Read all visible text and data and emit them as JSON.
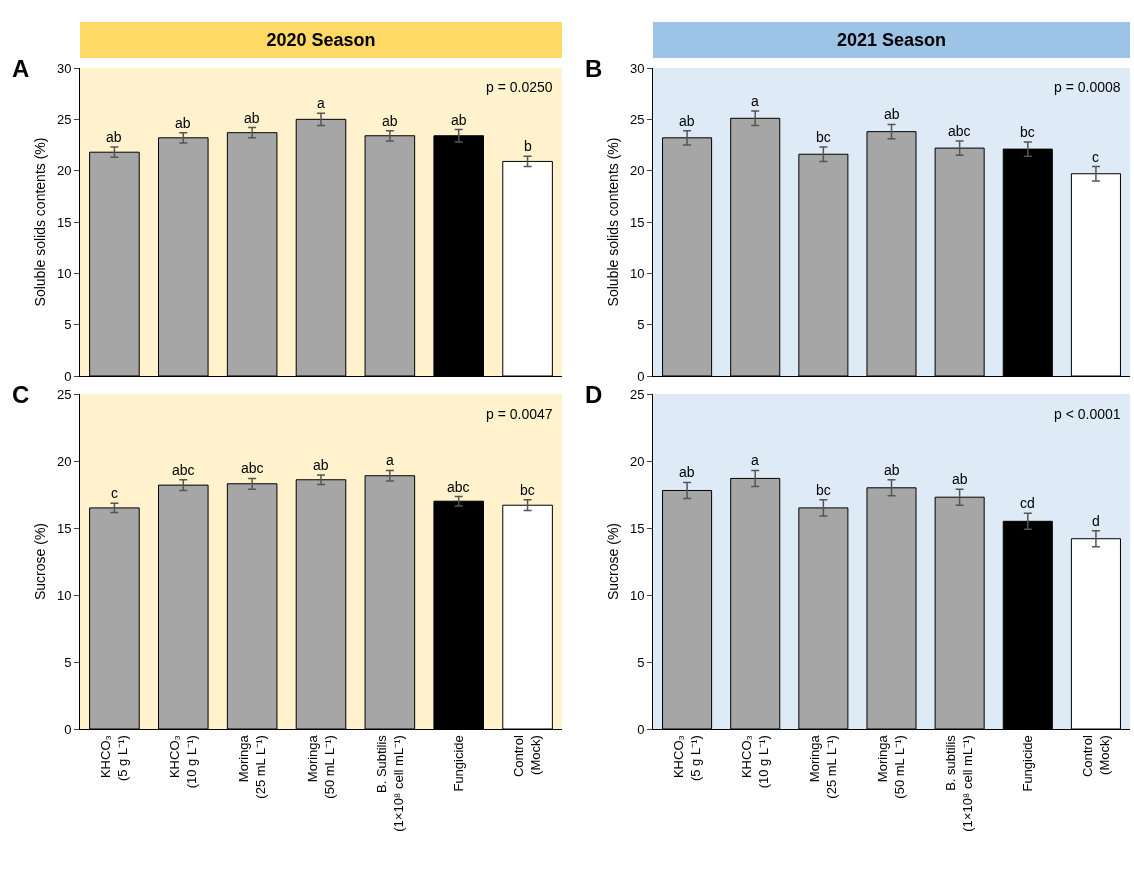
{
  "chart_data": [
    {
      "type": "bar",
      "title": "2020 Season",
      "ylabel": "Soluble solids contents (%)",
      "categories": [
        "KHCO₃\n(5 g L⁻¹)",
        "KHCO₃\n(10 g L⁻¹)",
        "Moringa\n(25 mL L⁻¹)",
        "Moringa\n(50 mL L⁻¹)",
        "B. Subtilis\n(1×10⁸ cell mL⁻¹)",
        "Fungicide",
        "Control\n(Mock)"
      ],
      "values": [
        21.8,
        23.2,
        23.7,
        25.0,
        23.4,
        23.4,
        20.9
      ],
      "errors": [
        0.5,
        0.5,
        0.5,
        0.6,
        0.5,
        0.6,
        0.5
      ],
      "colors": [
        "#a6a6a6",
        "#a6a6a6",
        "#a6a6a6",
        "#a6a6a6",
        "#a6a6a6",
        "#000000",
        "#ffffff"
      ],
      "ylim": [
        0,
        30
      ],
      "yticks": [
        0,
        5,
        10,
        15,
        20,
        25,
        30
      ],
      "tick_labels": "y",
      "annotations": [
        "A",
        "p = 0.0250",
        {
          "text": "ab",
          "x": "KHCO₃\n(5 g L⁻¹)",
          "y": 22.3
        },
        {
          "text": "ab",
          "x": "KHCO₃\n(10 g L⁻¹)",
          "y": 23.7
        },
        {
          "text": "ab",
          "x": "Moringa\n(25 mL L⁻¹)",
          "y": 24.2
        },
        {
          "text": "a",
          "x": "Moringa\n(50 mL L⁻¹)",
          "y": 25.6
        },
        {
          "text": "ab",
          "x": "B. Subtilis\n(1×10⁸ cell mL⁻¹)",
          "y": 23.9
        },
        {
          "text": "ab",
          "x": "Fungicide",
          "y": 24.0
        },
        {
          "text": "b",
          "x": "Control\n(Mock)",
          "y": 21.4
        }
      ]
    },
    {
      "type": "bar",
      "title": "2021 Season",
      "ylabel": "Soluble solids contents (%)",
      "categories": [
        "KHCO₃\n(5 g L⁻¹)",
        "KHCO₃\n(10 g L⁻¹)",
        "Moringa\n(25 mL L⁻¹)",
        "Moringa\n(50 mL L⁻¹)",
        "B. subtilis\n(1×10⁸ cell mL⁻¹)",
        "Fungicide",
        "Control\n(Mock)"
      ],
      "values": [
        23.2,
        25.1,
        21.6,
        23.8,
        22.2,
        22.1,
        19.7
      ],
      "errors": [
        0.7,
        0.7,
        0.7,
        0.7,
        0.7,
        0.7,
        0.7
      ],
      "colors": [
        "#a6a6a6",
        "#a6a6a6",
        "#a6a6a6",
        "#a6a6a6",
        "#a6a6a6",
        "#000000",
        "#ffffff"
      ],
      "ylim": [
        0,
        30
      ],
      "yticks": [
        0,
        5,
        10,
        15,
        20,
        25,
        30
      ],
      "tick_labels": "y",
      "annotations": [
        "B",
        "p = 0.0008",
        {
          "text": "ab",
          "x": "KHCO₃\n(5 g L⁻¹)",
          "y": 23.9
        },
        {
          "text": "a",
          "x": "KHCO₃\n(10 g L⁻¹)",
          "y": 25.8
        },
        {
          "text": "bc",
          "x": "Moringa\n(25 mL L⁻¹)",
          "y": 22.3
        },
        {
          "text": "ab",
          "x": "Moringa\n(50 mL L⁻¹)",
          "y": 24.5
        },
        {
          "text": "abc",
          "x": "B. subtilis\n(1×10⁸ cell mL⁻¹)",
          "y": 22.9
        },
        {
          "text": "bc",
          "x": "Fungicide",
          "y": 22.8
        },
        {
          "text": "c",
          "x": "Control\n(Mock)",
          "y": 20.4
        }
      ]
    },
    {
      "type": "bar",
      "ylabel": "Sucrose (%)",
      "categories": [
        "KHCO₃\n(5 g L⁻¹)",
        "KHCO₃\n(10 g L⁻¹)",
        "Moringa\n(25 mL L⁻¹)",
        "Moringa\n(50 mL L⁻¹)",
        "B. Subtilis\n(1×10⁸ cell mL⁻¹)",
        "Fungicide",
        "Control\n(Mock)"
      ],
      "values": [
        16.5,
        18.2,
        18.3,
        18.6,
        18.9,
        17.0,
        16.7
      ],
      "errors": [
        0.35,
        0.4,
        0.4,
        0.35,
        0.4,
        0.35,
        0.4
      ],
      "colors": [
        "#a6a6a6",
        "#a6a6a6",
        "#a6a6a6",
        "#a6a6a6",
        "#a6a6a6",
        "#000000",
        "#ffffff"
      ],
      "ylim": [
        0,
        25
      ],
      "yticks": [
        0,
        5,
        10,
        15,
        20,
        25
      ],
      "annotations": [
        "C",
        "p = 0.0047",
        {
          "text": "c",
          "x": "KHCO₃\n(5 g L⁻¹)",
          "y": 16.85
        },
        {
          "text": "abc",
          "x": "KHCO₃\n(10 g L⁻¹)",
          "y": 18.6
        },
        {
          "text": "abc",
          "x": "Moringa\n(25 mL L⁻¹)",
          "y": 18.7
        },
        {
          "text": "ab",
          "x": "Moringa\n(50 mL L⁻¹)",
          "y": 18.95
        },
        {
          "text": "a",
          "x": "B. Subtilis\n(1×10⁸ cell mL⁻¹)",
          "y": 19.3
        },
        {
          "text": "abc",
          "x": "Fungicide",
          "y": 17.35
        },
        {
          "text": "bc",
          "x": "Control\n(Mock)",
          "y": 17.1
        }
      ]
    },
    {
      "type": "bar",
      "ylabel": "Sucrose (%)",
      "categories": [
        "KHCO₃\n(5 g L⁻¹)",
        "KHCO₃\n(10 g L⁻¹)",
        "Moringa\n(25 mL L⁻¹)",
        "Moringa\n(50 mL L⁻¹)",
        "B. subtilis\n(1×10⁸ cell mL⁻¹)",
        "Fungicide",
        "Control\n(Mock)"
      ],
      "values": [
        17.8,
        18.7,
        16.5,
        18.0,
        17.3,
        15.5,
        14.2
      ],
      "errors": [
        0.6,
        0.6,
        0.6,
        0.6,
        0.6,
        0.6,
        0.6
      ],
      "colors": [
        "#a6a6a6",
        "#a6a6a6",
        "#a6a6a6",
        "#a6a6a6",
        "#a6a6a6",
        "#000000",
        "#ffffff"
      ],
      "ylim": [
        0,
        25
      ],
      "yticks": [
        0,
        5,
        10,
        15,
        20,
        25
      ],
      "annotations": [
        "D",
        "p < 0.0001",
        {
          "text": "ab",
          "x": "KHCO₃\n(5 g L⁻¹)",
          "y": 18.4
        },
        {
          "text": "a",
          "x": "KHCO₃\n(10 g L⁻¹)",
          "y": 19.3
        },
        {
          "text": "bc",
          "x": "Moringa\n(25 mL L⁻¹)",
          "y": 17.1
        },
        {
          "text": "ab",
          "x": "Moringa\n(50 mL L⁻¹)",
          "y": 18.6
        },
        {
          "text": "ab",
          "x": "B. subtilis\n(1×10⁸ cell mL⁻¹)",
          "y": 17.9
        },
        {
          "text": "cd",
          "x": "Fungicide",
          "y": 16.1
        },
        {
          "text": "d",
          "x": "Control\n(Mock)",
          "y": 14.8
        }
      ]
    }
  ]
}
